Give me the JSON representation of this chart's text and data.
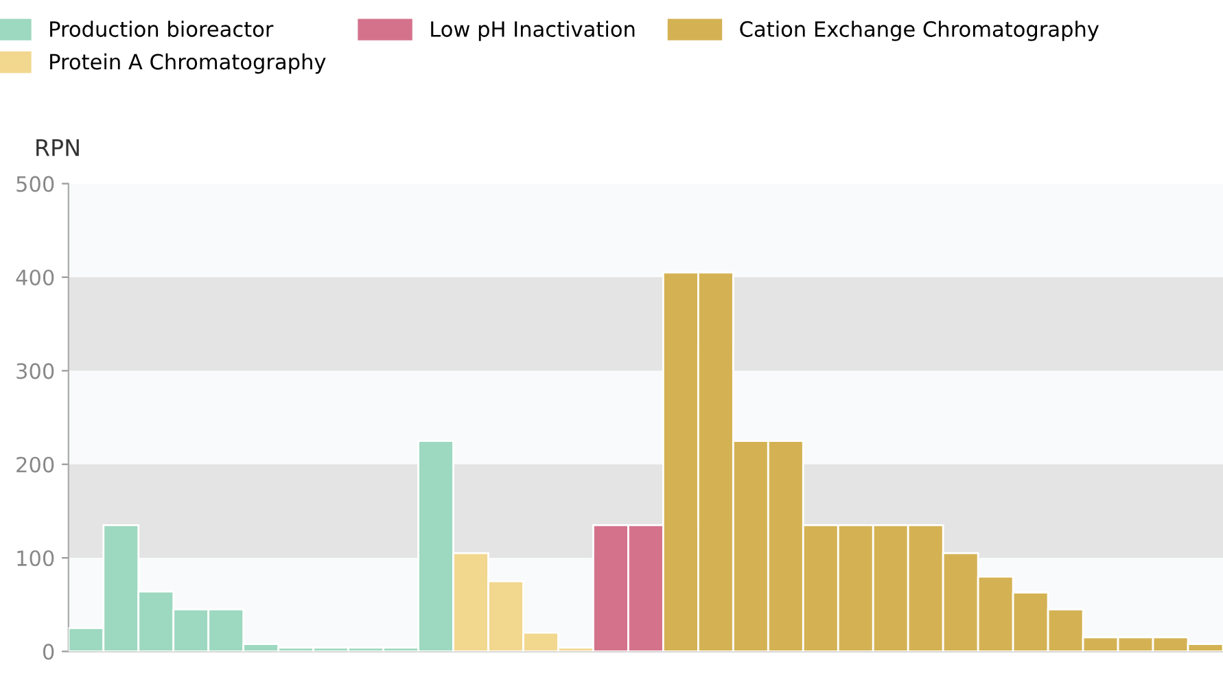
{
  "chart_data": {
    "type": "bar",
    "ylabel": "RPN",
    "categories": [
      null,
      null,
      null,
      null,
      null,
      null,
      null,
      null,
      null,
      null,
      null,
      null,
      null,
      null,
      null,
      null,
      null,
      null,
      null,
      null,
      null,
      null,
      null,
      null,
      null,
      null,
      null,
      null,
      null,
      null,
      null,
      null,
      null
    ],
    "series": [
      {
        "name": "Production bioreactor",
        "color": "#9dd8c0",
        "values": [
          25,
          135,
          64,
          45,
          45,
          8,
          4,
          4,
          4,
          4,
          225,
          null,
          null,
          null,
          null,
          null,
          null,
          null,
          null,
          null,
          null,
          null,
          null,
          null,
          null,
          null,
          null,
          null,
          null,
          null,
          null,
          null,
          null
        ]
      },
      {
        "name": "Protein A Chromatography",
        "color": "#f2d78f",
        "values": [
          null,
          null,
          null,
          null,
          null,
          null,
          null,
          null,
          null,
          null,
          null,
          105,
          75,
          20,
          4,
          null,
          null,
          null,
          null,
          null,
          null,
          null,
          null,
          null,
          null,
          null,
          null,
          null,
          null,
          null,
          null,
          null,
          null
        ]
      },
      {
        "name": "Low pH Inactivation",
        "color": "#d4728c",
        "values": [
          null,
          null,
          null,
          null,
          null,
          null,
          null,
          null,
          null,
          null,
          null,
          null,
          null,
          null,
          null,
          135,
          135,
          null,
          null,
          null,
          null,
          null,
          null,
          null,
          null,
          null,
          null,
          null,
          null,
          null,
          null,
          null,
          null
        ]
      },
      {
        "name": "Cation Exchange Chromatography",
        "color": "#d4b254",
        "values": [
          null,
          null,
          null,
          null,
          null,
          null,
          null,
          null,
          null,
          null,
          null,
          null,
          null,
          null,
          null,
          null,
          null,
          405,
          405,
          225,
          225,
          135,
          135,
          135,
          135,
          105,
          80,
          63,
          45,
          15,
          15,
          15,
          8
        ]
      }
    ],
    "ylim": [
      0,
      500
    ],
    "yticks": [
      0,
      100,
      200,
      300,
      400,
      500
    ],
    "bands": [
      {
        "axis": "y",
        "from": 100,
        "to": 200,
        "color": "#e4e4e4"
      },
      {
        "axis": "y",
        "from": 300,
        "to": 400,
        "color": "#e4e4e4"
      }
    ],
    "legend": "top",
    "grid": false
  }
}
